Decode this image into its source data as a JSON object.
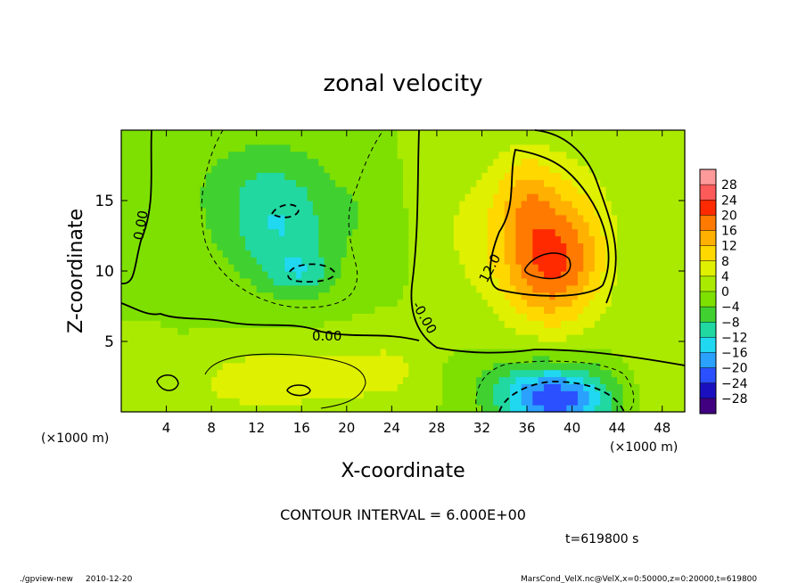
{
  "chart_data": {
    "type": "heatmap",
    "title": "zonal velocity",
    "xlabel": "X-coordinate",
    "ylabel": "Z-coordinate",
    "x_unit_label": "(×1000 m)",
    "z_unit_label": "(×1000 m)",
    "xlim": [
      0,
      50
    ],
    "ylim": [
      0,
      20
    ],
    "x_ticks": [
      4,
      8,
      12,
      16,
      20,
      24,
      28,
      32,
      36,
      40,
      44,
      48
    ],
    "y_ticks": [
      5,
      10,
      15
    ],
    "colorbar": {
      "levels": [
        28,
        24,
        20,
        16,
        12,
        8,
        4,
        0,
        -4,
        -8,
        -12,
        -16,
        -20,
        -24,
        -28
      ],
      "labels": [
        "28",
        "24",
        "20",
        "16",
        "12",
        "8",
        "4",
        "0",
        "−4",
        "−8",
        "−12",
        "−16",
        "−20",
        "−24",
        "−28"
      ],
      "colors": [
        "#ff9a9a",
        "#ff5a5a",
        "#ff2a00",
        "#ff7a00",
        "#ffb000",
        "#ffd800",
        "#dff000",
        "#aaea00",
        "#7ee000",
        "#40d030",
        "#20d8a0",
        "#20d8f0",
        "#2aa0ff",
        "#2a50ff",
        "#1a10c0",
        "#400080"
      ]
    },
    "contour_interval_text": "CONTOUR INTERVAL = 6.000E+00",
    "contour_labels": [
      "0.00",
      "0.00",
      "-0.00",
      "12.0"
    ],
    "time_text": "t=619800 s",
    "anomalies": [
      {
        "x": 38,
        "z": 10.5,
        "value": 20,
        "sx": 4.5,
        "sy": 4.5
      },
      {
        "x": 36,
        "z": 15.5,
        "value": 10,
        "sx": 3.0,
        "sy": 3.5
      },
      {
        "x": 31,
        "z": 13,
        "value": 4,
        "sx": 3.5,
        "sy": 5
      },
      {
        "x": 41,
        "z": 14,
        "value": 4,
        "sx": 3,
        "sy": 5
      },
      {
        "x": 14,
        "z": 13,
        "value": -11,
        "sx": 5,
        "sy": 4
      },
      {
        "x": 16,
        "z": 9.8,
        "value": -7,
        "sx": 3,
        "sy": 1.7
      },
      {
        "x": 12,
        "z": 17,
        "value": -4,
        "sx": 7,
        "sy": 3.5
      },
      {
        "x": 5,
        "z": 13,
        "value": -1.5,
        "sx": 4,
        "sy": 4
      },
      {
        "x": 22,
        "z": 14,
        "value": -2.5,
        "sx": 3,
        "sy": 4
      },
      {
        "x": 16.5,
        "z": 2.5,
        "value": 7,
        "sx": 6,
        "sy": 2.2
      },
      {
        "x": 10,
        "z": 2,
        "value": 4,
        "sx": 4,
        "sy": 2
      },
      {
        "x": 24,
        "z": 3,
        "value": 4,
        "sx": 3.5,
        "sy": 2.5
      },
      {
        "x": 38.5,
        "z": 0.8,
        "value": -22,
        "sx": 5,
        "sy": 2.0
      },
      {
        "x": 37,
        "z": 2.8,
        "value": -5,
        "sx": 6,
        "sy": 1.8
      },
      {
        "x": 47,
        "z": 2,
        "value": 3,
        "sx": 3,
        "sy": 3
      },
      {
        "x": 2,
        "z": 2.5,
        "value": 4,
        "sx": 2,
        "sy": 2
      },
      {
        "x": 27,
        "z": 17,
        "value": 2,
        "sx": 2,
        "sy": 4
      }
    ]
  },
  "footer": {
    "program": "./gpview-new",
    "date": "2010-12-20",
    "source": "MarsCond_VelX.nc@VelX,x=0:50000,z=0:20000,t=619800"
  }
}
